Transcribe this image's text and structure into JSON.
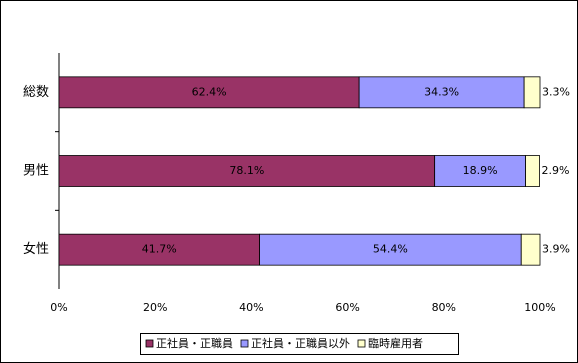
{
  "chart_data": {
    "type": "stacked-bar-horizontal",
    "categories": [
      "総数",
      "男性",
      "女性"
    ],
    "series": [
      {
        "name": "正社員・正職員",
        "color": "#993366",
        "values": [
          62.4,
          78.1,
          41.7
        ],
        "value_labels": [
          "62.4%",
          "78.1%",
          "41.7%"
        ]
      },
      {
        "name": "正社員・正職員以外",
        "color": "#9999ff",
        "values": [
          34.3,
          18.9,
          54.4
        ],
        "value_labels": [
          "34.3%",
          "18.9%",
          "54.4%"
        ]
      },
      {
        "name": "臨時雇用者",
        "color": "#ffffcc",
        "values": [
          3.3,
          2.9,
          3.9
        ],
        "value_labels": [
          "3.3%",
          "2.9%",
          "3.9%"
        ]
      }
    ],
    "xlim": [
      0,
      100
    ],
    "xticks": [
      {
        "value": 0,
        "label": "0%"
      },
      {
        "value": 20,
        "label": "20%"
      },
      {
        "value": 40,
        "label": "40%"
      },
      {
        "value": 60,
        "label": "60%"
      },
      {
        "value": 80,
        "label": "80%"
      },
      {
        "value": 100,
        "label": "100%"
      }
    ],
    "legend": "bottom"
  }
}
